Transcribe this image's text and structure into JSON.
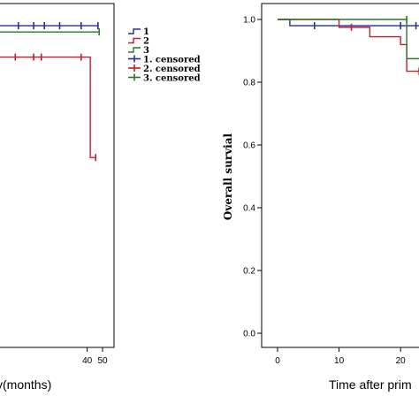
{
  "chart_data": [
    {
      "type": "line",
      "subtype": "kaplan-meier",
      "title": "",
      "xlabel": "y(months)",
      "ylabel": "",
      "xlim": [
        -17,
        50
      ],
      "ylim": [
        0,
        1.0
      ],
      "x_ticks": [
        "40",
        "50"
      ],
      "x_tick_values": [
        40,
        50
      ],
      "series": [
        {
          "name": "1",
          "color": "#1f2f9e",
          "steps": [
            [
              -17,
              0.98
            ],
            [
              47.5,
              0.98
            ]
          ],
          "censored": [
            [
              -5,
              0.98
            ],
            [
              5,
              0.98
            ],
            [
              12,
              0.98
            ],
            [
              22,
              0.98
            ],
            [
              36,
              0.98
            ],
            [
              47,
              0.98
            ]
          ]
        },
        {
          "name": "2",
          "color": "#c41e2a",
          "steps": [
            [
              -17,
              0.88
            ],
            [
              42,
              0.88
            ],
            [
              42,
              0.56
            ],
            [
              46,
              0.56
            ]
          ],
          "censored": [
            [
              -7,
              0.88
            ],
            [
              5,
              0.88
            ],
            [
              10,
              0.88
            ],
            [
              36,
              0.88
            ],
            [
              45.5,
              0.56
            ]
          ]
        },
        {
          "name": "3",
          "color": "#2a7a2a",
          "steps": [
            [
              -17,
              0.96
            ],
            [
              47.8,
              0.96
            ]
          ],
          "censored": [
            [
              47.8,
              0.96
            ]
          ]
        }
      ]
    },
    {
      "type": "line",
      "subtype": "kaplan-meier",
      "title": "",
      "xlabel": "Time after prim",
      "ylabel": "Overall survial",
      "xlim": [
        -2,
        24
      ],
      "ylim": [
        0,
        1.0
      ],
      "x_ticks": [
        "0",
        "10",
        "20"
      ],
      "x_tick_values": [
        0,
        10,
        20
      ],
      "y_ticks": [
        "0.0",
        "0.2",
        "0.4",
        "0.6",
        "0.8",
        "1.0"
      ],
      "y_tick_values": [
        0.0,
        0.2,
        0.4,
        0.6,
        0.8,
        1.0
      ],
      "series": [
        {
          "name": "1",
          "color": "#1f2f9e",
          "steps": [
            [
              0,
              1.0
            ],
            [
              2,
              1.0
            ],
            [
              2,
              0.98
            ],
            [
              24,
              0.98
            ]
          ],
          "censored": [
            [
              6,
              0.98
            ],
            [
              20,
              0.98
            ],
            [
              22.5,
              0.98
            ]
          ]
        },
        {
          "name": "2",
          "color": "#c41e2a",
          "steps": [
            [
              0,
              1.0
            ],
            [
              10,
              1.0
            ],
            [
              10,
              0.975
            ],
            [
              15,
              0.975
            ],
            [
              15,
              0.945
            ],
            [
              20,
              0.945
            ],
            [
              20,
              0.92
            ],
            [
              21,
              0.92
            ],
            [
              21,
              0.835
            ],
            [
              24,
              0.835
            ]
          ],
          "censored": [
            [
              12,
              0.975
            ],
            [
              23,
              0.835
            ]
          ]
        },
        {
          "name": "3",
          "color": "#2a7a2a",
          "steps": [
            [
              0,
              1.0
            ],
            [
              21,
              1.0
            ],
            [
              21,
              0.875
            ],
            [
              24,
              0.875
            ]
          ],
          "censored": [
            [
              21,
              1.0
            ]
          ]
        }
      ]
    }
  ],
  "legend": {
    "items": [
      {
        "label": "1",
        "kind": "line",
        "color": "#1f2f9e"
      },
      {
        "label": "2",
        "kind": "line",
        "color": "#c41e2a"
      },
      {
        "label": "3",
        "kind": "line",
        "color": "#2a7a2a"
      },
      {
        "label": "1. censored",
        "kind": "censor",
        "color": "#1f2f9e"
      },
      {
        "label": "2. censored",
        "kind": "censor",
        "color": "#c41e2a"
      },
      {
        "label": "3. censored",
        "kind": "censor",
        "color": "#2a7a2a"
      }
    ]
  }
}
